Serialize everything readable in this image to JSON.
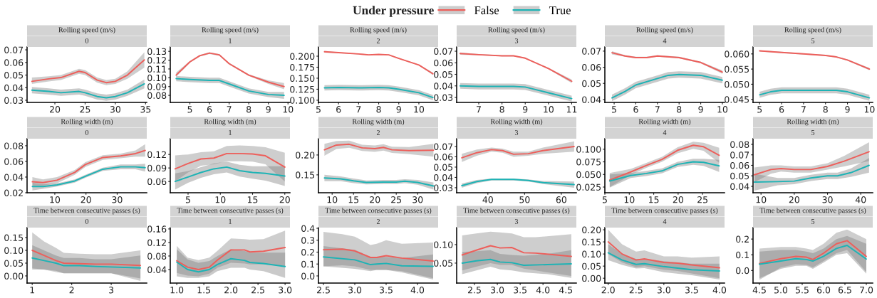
{
  "chart_data": [
    {
      "type": "line",
      "title": "Rolling speed (m/s)",
      "subtitle": "0",
      "legend": "top",
      "legend_title": "Under pressure",
      "xlim": [
        15.4,
        35.2
      ],
      "ylim": [
        0.0283,
        0.0723
      ],
      "xticks": [
        20,
        25,
        30,
        35
      ],
      "yticks": [
        0.03,
        0.04,
        0.05,
        0.06,
        0.07
      ],
      "series": [
        {
          "name": "False",
          "color": "#ed5f5b",
          "x": [
            16.2,
            19,
            21,
            24,
            25,
            27,
            28.5,
            30,
            32,
            34.8
          ],
          "values": [
            0.045,
            0.047,
            0.048,
            0.053,
            0.052,
            0.046,
            0.044,
            0.045,
            0.05,
            0.062
          ],
          "lower": [
            0.043,
            0.045,
            0.046,
            0.051,
            0.05,
            0.044,
            0.042,
            0.043,
            0.047,
            0.056
          ],
          "upper": [
            0.048,
            0.049,
            0.05,
            0.055,
            0.054,
            0.048,
            0.046,
            0.047,
            0.053,
            0.068
          ]
        },
        {
          "name": "True",
          "color": "#1db3b5",
          "x": [
            16.2,
            19,
            21,
            24,
            25,
            27,
            28.5,
            30,
            32,
            34.8
          ],
          "values": [
            0.038,
            0.037,
            0.036,
            0.037,
            0.036,
            0.033,
            0.032,
            0.033,
            0.036,
            0.043
          ],
          "lower": [
            0.0355,
            0.0345,
            0.0335,
            0.0345,
            0.0335,
            0.0305,
            0.0295,
            0.0305,
            0.0335,
            0.0395
          ],
          "upper": [
            0.0405,
            0.0395,
            0.0385,
            0.0395,
            0.0385,
            0.0355,
            0.0345,
            0.0355,
            0.0385,
            0.0465
          ]
        }
      ]
    },
    {
      "type": "line",
      "title": "Rolling speed (m/s)",
      "subtitle": "1",
      "xlim": [
        4.0,
        10.1
      ],
      "ylim": [
        0.072,
        0.135
      ],
      "xticks": [
        5,
        6,
        7,
        8,
        9,
        10
      ],
      "yticks": [
        0.08,
        0.09,
        {
          "value": 0.1,
          "label": "0.10"
        },
        0.11,
        0.12,
        0.13
      ],
      "series": [
        {
          "name": "False",
          "color": "#ed5f5b",
          "x": [
            4.3,
            5,
            5.5,
            6,
            6.5,
            7,
            8,
            9,
            9.8
          ],
          "values": [
            0.103,
            0.118,
            0.125,
            0.128,
            0.126,
            0.116,
            0.103,
            0.095,
            0.09
          ],
          "lower": [
            0.101,
            0.117,
            0.124,
            0.127,
            0.125,
            0.115,
            0.102,
            0.093,
            0.087
          ],
          "upper": [
            0.106,
            0.119,
            0.126,
            0.129,
            0.127,
            0.117,
            0.104,
            0.097,
            0.094
          ]
        },
        {
          "name": "True",
          "color": "#1db3b5",
          "x": [
            4.3,
            5,
            6,
            6.5,
            7,
            8,
            9,
            9.8
          ],
          "values": [
            0.099,
            0.098,
            0.097,
            0.097,
            0.093,
            0.085,
            0.081,
            0.08
          ],
          "lower": [
            0.096,
            0.095,
            0.094,
            0.094,
            0.09,
            0.082,
            0.078,
            0.076
          ],
          "upper": [
            0.102,
            0.101,
            0.1,
            0.1,
            0.096,
            0.088,
            0.084,
            0.084
          ]
        }
      ]
    },
    {
      "type": "line",
      "title": "Rolling speed (m/s)",
      "subtitle": "2",
      "xlim": [
        5.0,
        10.96
      ],
      "ylim": [
        0.095,
        0.221
      ],
      "xticks": [
        5,
        6,
        7,
        8,
        9,
        10
      ],
      "yticks": [
        {
          "value": 0.1,
          "label": "0.100"
        },
        0.125,
        {
          "value": 0.15,
          "label": "0.150"
        },
        0.175,
        {
          "value": 0.2,
          "label": "0.200"
        }
      ],
      "series": [
        {
          "name": "False",
          "color": "#ed5f5b",
          "x": [
            5.3,
            6,
            7,
            7.5,
            8,
            8.5,
            9,
            10,
            10.7
          ],
          "values": [
            0.21,
            0.208,
            0.205,
            0.203,
            0.204,
            0.203,
            0.195,
            0.18,
            0.16
          ],
          "lower": [
            0.208,
            0.207,
            0.204,
            0.202,
            0.203,
            0.202,
            0.194,
            0.179,
            0.157
          ],
          "upper": [
            0.212,
            0.209,
            0.206,
            0.204,
            0.205,
            0.204,
            0.196,
            0.181,
            0.163
          ]
        },
        {
          "name": "True",
          "color": "#1db3b5",
          "x": [
            5.3,
            6,
            7,
            8,
            8.5,
            9,
            10,
            10.7
          ],
          "values": [
            0.128,
            0.129,
            0.128,
            0.129,
            0.128,
            0.125,
            0.117,
            0.106
          ],
          "lower": [
            0.122,
            0.123,
            0.122,
            0.123,
            0.122,
            0.119,
            0.111,
            0.1
          ],
          "upper": [
            0.134,
            0.135,
            0.134,
            0.135,
            0.134,
            0.131,
            0.123,
            0.112
          ]
        }
      ]
    },
    {
      "type": "line",
      "title": "Rolling speed (m/s)",
      "subtitle": "3",
      "xlim": [
        6.05,
        11.2
      ],
      "ylim": [
        0.0257,
        0.0737
      ],
      "xticks": [
        7,
        8,
        9,
        10,
        11
      ],
      "yticks": [
        0.03,
        0.04,
        0.05,
        0.06,
        0.07
      ],
      "series": [
        {
          "name": "False",
          "color": "#ed5f5b",
          "x": [
            6.2,
            7,
            8,
            8.5,
            9,
            10,
            11
          ],
          "values": [
            0.068,
            0.067,
            0.066,
            0.066,
            0.064,
            0.055,
            0.044
          ],
          "lower": [
            0.067,
            0.0665,
            0.0655,
            0.0655,
            0.0635,
            0.0545,
            0.0425
          ],
          "upper": [
            0.069,
            0.0675,
            0.0665,
            0.0665,
            0.0645,
            0.0555,
            0.0455
          ]
        },
        {
          "name": "True",
          "color": "#1db3b5",
          "x": [
            6.2,
            7,
            8,
            8.5,
            9,
            10,
            11
          ],
          "values": [
            0.04,
            0.0395,
            0.0395,
            0.0395,
            0.039,
            0.034,
            0.029
          ],
          "lower": [
            0.0375,
            0.037,
            0.037,
            0.037,
            0.0365,
            0.0315,
            0.0265
          ],
          "upper": [
            0.0425,
            0.042,
            0.042,
            0.042,
            0.0415,
            0.0365,
            0.0315
          ]
        }
      ]
    },
    {
      "type": "line",
      "title": "Rolling speed (m/s)",
      "subtitle": "4",
      "xlim": [
        4.57,
        10.1
      ],
      "ylim": [
        0.0382,
        0.0726
      ],
      "xticks": [
        5,
        6,
        7,
        8,
        9,
        10
      ],
      "yticks": [
        0.04,
        0.05,
        0.06,
        0.07
      ],
      "series": [
        {
          "name": "False",
          "color": "#ed5f5b",
          "x": [
            4.9,
            5.5,
            6,
            6.5,
            7,
            8,
            9,
            10
          ],
          "values": [
            0.069,
            0.067,
            0.066,
            0.066,
            0.067,
            0.066,
            0.063,
            0.057
          ],
          "lower": [
            0.068,
            0.0665,
            0.0655,
            0.0655,
            0.0665,
            0.0655,
            0.0625,
            0.056
          ],
          "upper": [
            0.07,
            0.0675,
            0.0665,
            0.0665,
            0.0675,
            0.0665,
            0.0635,
            0.058
          ]
        },
        {
          "name": "True",
          "color": "#1db3b5",
          "x": [
            4.9,
            5.5,
            6,
            7,
            7.5,
            8,
            9,
            10
          ],
          "values": [
            0.041,
            0.045,
            0.049,
            0.053,
            0.055,
            0.0555,
            0.055,
            0.052
          ],
          "lower": [
            0.039,
            0.043,
            0.047,
            0.051,
            0.053,
            0.0535,
            0.053,
            0.05
          ],
          "upper": [
            0.043,
            0.047,
            0.051,
            0.055,
            0.057,
            0.0575,
            0.057,
            0.054
          ]
        }
      ]
    },
    {
      "type": "line",
      "title": "Rolling speed (m/s)",
      "subtitle": "5",
      "xlim": [
        4.7,
        10.15
      ],
      "ylim": [
        0.044,
        0.0623
      ],
      "xticks": [
        5,
        6,
        7,
        8,
        9,
        10
      ],
      "yticks": [
        0.045,
        {
          "value": 0.05,
          "label": "0.050"
        },
        0.055,
        {
          "value": 0.06,
          "label": "0.060"
        }
      ],
      "series": [
        {
          "name": "False",
          "color": "#ed5f5b",
          "x": [
            5,
            6,
            7,
            8,
            8.5,
            9,
            10
          ],
          "values": [
            0.061,
            0.0605,
            0.06,
            0.0595,
            0.059,
            0.058,
            0.055
          ],
          "lower": [
            0.0608,
            0.0603,
            0.0598,
            0.0593,
            0.0588,
            0.0578,
            0.0546
          ],
          "upper": [
            0.0612,
            0.0607,
            0.0602,
            0.0597,
            0.0592,
            0.0582,
            0.0554
          ]
        },
        {
          "name": "True",
          "color": "#1db3b5",
          "x": [
            5,
            5.5,
            6,
            7,
            8,
            8.5,
            9,
            10
          ],
          "values": [
            0.0465,
            0.0475,
            0.048,
            0.048,
            0.048,
            0.048,
            0.0475,
            0.0455
          ],
          "lower": [
            0.0455,
            0.0465,
            0.047,
            0.047,
            0.047,
            0.047,
            0.0465,
            0.0445
          ],
          "upper": [
            0.0475,
            0.0485,
            0.049,
            0.049,
            0.049,
            0.049,
            0.0485,
            0.0465
          ]
        }
      ]
    },
    {
      "type": "line",
      "title": "Rolling width (m)",
      "subtitle": "0",
      "xlim": [
        1.1,
        39.5
      ],
      "ylim": [
        0.02,
        0.089
      ],
      "xticks": [
        10,
        20,
        30
      ],
      "yticks": [
        0.02,
        0.04,
        0.06,
        0.08
      ],
      "series": [
        {
          "name": "False",
          "color": "#ed5f5b",
          "x": [
            2.8,
            6.2,
            10.7,
            16.4,
            19.8,
            25.4,
            31.1,
            35.9,
            39
          ],
          "values": [
            0.034,
            0.033,
            0.036,
            0.046,
            0.056,
            0.065,
            0.067,
            0.07,
            0.074
          ],
          "lower": [
            0.029,
            0.029,
            0.032,
            0.043,
            0.053,
            0.062,
            0.064,
            0.066,
            0.066
          ],
          "upper": [
            0.04,
            0.037,
            0.04,
            0.049,
            0.059,
            0.068,
            0.07,
            0.074,
            0.082
          ]
        },
        {
          "name": "True",
          "color": "#1db3b5",
          "x": [
            2.8,
            6.2,
            10.7,
            16.4,
            19.8,
            25.4,
            31.1,
            35.9,
            39
          ],
          "values": [
            0.028,
            0.028,
            0.03,
            0.035,
            0.041,
            0.05,
            0.053,
            0.053,
            0.052
          ],
          "lower": [
            0.023,
            0.025,
            0.028,
            0.033,
            0.039,
            0.048,
            0.05,
            0.05,
            0.047
          ],
          "upper": [
            0.033,
            0.031,
            0.032,
            0.037,
            0.043,
            0.052,
            0.056,
            0.056,
            0.057
          ]
        }
      ]
    },
    {
      "type": "line",
      "title": "Rolling width (m)",
      "subtitle": "1",
      "xlim": [
        2.24,
        20.8
      ],
      "ylim": [
        0.035,
        0.155
      ],
      "xticks": [
        5,
        10,
        15,
        20
      ],
      "yticks": [
        0.06,
        0.09,
        0.12
      ],
      "series": [
        {
          "name": "False",
          "color": "#ed5f5b",
          "x": [
            3,
            5,
            7,
            9,
            11,
            13,
            15,
            17,
            20
          ],
          "values": [
            0.088,
            0.1,
            0.11,
            0.112,
            0.122,
            0.122,
            0.121,
            0.117,
            0.092
          ],
          "lower": [
            0.06,
            0.08,
            0.095,
            0.098,
            0.105,
            0.105,
            0.104,
            0.098,
            0.06
          ],
          "upper": [
            0.118,
            0.12,
            0.125,
            0.127,
            0.139,
            0.14,
            0.139,
            0.136,
            0.124
          ]
        },
        {
          "name": "True",
          "color": "#1db3b5",
          "x": [
            3,
            5,
            7,
            9,
            11,
            13,
            15,
            17,
            20
          ],
          "values": [
            0.06,
            0.07,
            0.08,
            0.088,
            0.092,
            0.084,
            0.08,
            0.078,
            0.072
          ],
          "lower": [
            0.042,
            0.057,
            0.068,
            0.076,
            0.08,
            0.071,
            0.066,
            0.062,
            0.05
          ],
          "upper": [
            0.078,
            0.083,
            0.092,
            0.1,
            0.104,
            0.097,
            0.094,
            0.094,
            0.094
          ]
        }
      ]
    },
    {
      "type": "line",
      "title": "Rolling width (m)",
      "subtitle": "2",
      "xlim": [
        6.8,
        34.8
      ],
      "ylim": [
        0.105,
        0.241
      ],
      "xticks": [
        10,
        15,
        20,
        25,
        30
      ],
      "yticks": [
        0.15,
        {
          "value": 0.2,
          "label": "0.20"
        }
      ],
      "series": [
        {
          "name": "False",
          "color": "#ed5f5b",
          "x": [
            8.2,
            11,
            14,
            17,
            20,
            22,
            24,
            28,
            33.7
          ],
          "values": [
            0.213,
            0.225,
            0.227,
            0.218,
            0.216,
            0.219,
            0.213,
            0.211,
            0.212
          ],
          "lower": [
            0.198,
            0.215,
            0.218,
            0.21,
            0.208,
            0.211,
            0.205,
            0.202,
            0.196
          ],
          "upper": [
            0.228,
            0.235,
            0.236,
            0.226,
            0.224,
            0.227,
            0.221,
            0.22,
            0.228
          ]
        },
        {
          "name": "True",
          "color": "#1db3b5",
          "x": [
            8.2,
            12,
            15,
            18,
            22,
            25,
            27,
            30,
            33.7
          ],
          "values": [
            0.142,
            0.14,
            0.135,
            0.131,
            0.132,
            0.132,
            0.134,
            0.131,
            0.122
          ],
          "lower": [
            0.134,
            0.134,
            0.129,
            0.126,
            0.127,
            0.127,
            0.129,
            0.125,
            0.113
          ],
          "upper": [
            0.15,
            0.146,
            0.141,
            0.136,
            0.137,
            0.137,
            0.139,
            0.137,
            0.131
          ]
        }
      ]
    },
    {
      "type": "line",
      "title": "Rolling width (m)",
      "subtitle": "3",
      "xlim": [
        31.5,
        64.1
      ],
      "ylim": [
        0.0251,
        0.0776
      ],
      "xticks": [
        40,
        50,
        60
      ],
      "yticks": [
        0.03,
        0.04,
        0.05,
        0.06,
        0.07
      ],
      "series": [
        {
          "name": "False",
          "color": "#ed5f5b",
          "x": [
            32.9,
            37,
            41,
            44,
            47,
            51,
            55,
            63.5
          ],
          "values": [
            0.059,
            0.064,
            0.067,
            0.066,
            0.0625,
            0.063,
            0.066,
            0.07
          ],
          "lower": [
            0.055,
            0.061,
            0.065,
            0.064,
            0.06,
            0.061,
            0.063,
            0.065
          ],
          "upper": [
            0.063,
            0.067,
            0.069,
            0.068,
            0.065,
            0.065,
            0.069,
            0.075
          ]
        },
        {
          "name": "True",
          "color": "#1db3b5",
          "x": [
            32.9,
            37,
            41,
            47,
            51,
            55,
            63.5
          ],
          "values": [
            0.032,
            0.036,
            0.038,
            0.038,
            0.037,
            0.035,
            0.033
          ],
          "lower": [
            0.03,
            0.0345,
            0.037,
            0.037,
            0.036,
            0.0335,
            0.03
          ],
          "upper": [
            0.034,
            0.0375,
            0.039,
            0.039,
            0.038,
            0.0365,
            0.036
          ]
        }
      ]
    },
    {
      "type": "line",
      "title": "Rolling width (m)",
      "subtitle": "4",
      "xlim": [
        5.0,
        29.5
      ],
      "ylim": [
        0.0137,
        0.121
      ],
      "xticks": [
        5,
        10,
        15,
        20,
        25
      ],
      "yticks": [
        0.025,
        {
          "value": 0.05,
          "label": "0.050"
        },
        0.075,
        {
          "value": 0.1,
          "label": "0.100"
        }
      ],
      "series": [
        {
          "name": "False",
          "color": "#ed5f5b",
          "x": [
            6,
            10.3,
            13.5,
            16.7,
            19.9,
            23.1,
            25.2,
            28.4
          ],
          "values": [
            0.039,
            0.055,
            0.068,
            0.08,
            0.098,
            0.108,
            0.105,
            0.088
          ],
          "lower": [
            0.025,
            0.049,
            0.063,
            0.075,
            0.092,
            0.101,
            0.097,
            0.073
          ],
          "upper": [
            0.053,
            0.061,
            0.073,
            0.085,
            0.104,
            0.115,
            0.113,
            0.103
          ]
        },
        {
          "name": "True",
          "color": "#1db3b5",
          "x": [
            6,
            10.3,
            13.5,
            16.7,
            19.9,
            23.1,
            25.2,
            28.4
          ],
          "values": [
            0.037,
            0.048,
            0.052,
            0.057,
            0.07,
            0.075,
            0.074,
            0.067
          ],
          "lower": [
            0.024,
            0.043,
            0.047,
            0.052,
            0.065,
            0.069,
            0.067,
            0.055
          ],
          "upper": [
            0.05,
            0.053,
            0.057,
            0.062,
            0.075,
            0.081,
            0.081,
            0.079
          ]
        }
      ]
    },
    {
      "type": "line",
      "title": "Rolling width (m)",
      "subtitle": "5",
      "xlim": [
        7.6,
        43.6
      ],
      "ylim": [
        0.0339,
        0.0854
      ],
      "xticks": [
        10,
        20,
        30,
        40
      ],
      "yticks": [
        0.04,
        0.05,
        0.06,
        0.07,
        0.08
      ],
      "series": [
        {
          "name": "False",
          "color": "#ed5f5b",
          "x": [
            8,
            13,
            16,
            20,
            25,
            30,
            35,
            42.5
          ],
          "values": [
            0.051,
            0.056,
            0.057,
            0.056,
            0.056,
            0.059,
            0.064,
            0.073
          ],
          "lower": [
            0.044,
            0.052,
            0.054,
            0.053,
            0.053,
            0.056,
            0.059,
            0.064
          ],
          "upper": [
            0.058,
            0.06,
            0.06,
            0.059,
            0.059,
            0.062,
            0.069,
            0.082
          ]
        },
        {
          "name": "True",
          "color": "#1db3b5",
          "x": [
            8,
            15,
            20,
            25,
            30,
            33,
            37,
            42.5
          ],
          "values": [
            0.044,
            0.0445,
            0.045,
            0.048,
            0.05,
            0.05,
            0.053,
            0.06
          ],
          "lower": [
            0.036,
            0.041,
            0.042,
            0.045,
            0.047,
            0.047,
            0.049,
            0.053
          ],
          "upper": [
            0.052,
            0.048,
            0.048,
            0.051,
            0.053,
            0.053,
            0.057,
            0.067
          ]
        }
      ]
    },
    {
      "type": "line",
      "title": "Time between consecutive passes (s)",
      "subtitle": "0",
      "xlim": [
        0.87,
        3.9
      ],
      "ylim": [
        -0.028,
        0.189
      ],
      "xticks": [
        1,
        2,
        3
      ],
      "yticks": [
        {
          "value": 0.0,
          "label": "0.00"
        },
        0.05,
        {
          "value": 0.1,
          "label": "0.10"
        },
        0.15
      ],
      "series": [
        {
          "name": "False",
          "color": "#ed5f5b",
          "x": [
            1,
            1.3,
            1.6,
            1.8,
            2.2,
            2.6,
            3,
            3.74
          ],
          "values": [
            0.1,
            0.08,
            0.06,
            0.05,
            0.048,
            0.046,
            0.046,
            0.041
          ],
          "lower": [
            0.03,
            0.025,
            0.015,
            0.01,
            0.01,
            0.01,
            0.01,
            -0.02
          ],
          "upper": [
            0.17,
            0.135,
            0.11,
            0.09,
            0.087,
            0.085,
            0.085,
            0.1
          ]
        },
        {
          "name": "True",
          "color": "#1db3b5",
          "x": [
            1,
            1.3,
            1.6,
            1.8,
            2.2,
            2.6,
            3,
            3.74
          ],
          "values": [
            0.07,
            0.06,
            0.05,
            0.04,
            0.04,
            0.037,
            0.035,
            0.031
          ],
          "lower": [
            0.025,
            0.025,
            0.02,
            0.01,
            0.01,
            0.01,
            0.01,
            -0.01
          ],
          "upper": [
            0.12,
            0.1,
            0.08,
            0.07,
            0.07,
            0.065,
            0.065,
            0.08
          ]
        }
      ]
    },
    {
      "type": "line",
      "title": "Time between consecutive passes (s)",
      "subtitle": "1",
      "xlim": [
        0.88,
        3.09
      ],
      "ylim": [
        0.0,
        0.164
      ],
      "xticks": [
        {
          "value": 1,
          "label": "1.0"
        },
        1.5,
        {
          "value": 2,
          "label": "2.0"
        },
        2.5,
        {
          "value": 3,
          "label": "3.0"
        }
      ],
      "yticks": [
        0.04,
        0.08,
        0.12,
        0.16
      ],
      "series": [
        {
          "name": "False",
          "color": "#ed5f5b",
          "x": [
            1,
            1.2,
            1.4,
            1.6,
            1.75,
            2,
            2.25,
            2.35,
            2.6,
            3
          ],
          "values": [
            0.066,
            0.047,
            0.04,
            0.047,
            0.068,
            0.098,
            0.098,
            0.092,
            0.094,
            0.105
          ],
          "lower": [
            0.03,
            0.022,
            0.02,
            0.028,
            0.045,
            0.06,
            0.058,
            0.055,
            0.055,
            0.05
          ],
          "upper": [
            0.11,
            0.075,
            0.068,
            0.075,
            0.095,
            0.132,
            0.13,
            0.128,
            0.13,
            0.155
          ]
        },
        {
          "name": "True",
          "color": "#1db3b5",
          "x": [
            1,
            1.2,
            1.4,
            1.6,
            1.75,
            2,
            2.25,
            2.35,
            2.6,
            3
          ],
          "values": [
            0.062,
            0.04,
            0.033,
            0.04,
            0.055,
            0.072,
            0.067,
            0.061,
            0.058,
            0.049
          ],
          "lower": [
            0.02,
            0.015,
            0.015,
            0.02,
            0.035,
            0.045,
            0.045,
            0.04,
            0.035,
            0.015
          ],
          "upper": [
            0.1,
            0.07,
            0.06,
            0.065,
            0.08,
            0.1,
            0.095,
            0.09,
            0.09,
            0.09
          ]
        }
      ]
    },
    {
      "type": "line",
      "title": "Time between consecutive passes (s)",
      "subtitle": "2",
      "xlim": [
        2.42,
        4.33
      ],
      "ylim": [
        -0.06,
        0.406
      ],
      "xticks": [
        2.5,
        {
          "value": 3,
          "label": "3.0"
        },
        3.5,
        {
          "value": 4,
          "label": "4.0"
        }
      ],
      "yticks": [
        {
          "value": 0,
          "label": "0.0"
        },
        0.1,
        0.2,
        0.3,
        0.4
      ],
      "series": [
        {
          "name": "False",
          "color": "#ed5f5b",
          "x": [
            2.5,
            2.8,
            3,
            3.25,
            3.35,
            3.5,
            3.75,
            4.25
          ],
          "values": [
            0.22,
            0.225,
            0.21,
            0.155,
            0.155,
            0.17,
            0.15,
            0.125
          ],
          "lower": [
            0.08,
            0.09,
            0.08,
            0.05,
            0.05,
            0.05,
            0.04,
            -0.02
          ],
          "upper": [
            0.37,
            0.35,
            0.33,
            0.26,
            0.27,
            0.3,
            0.27,
            0.28
          ]
        },
        {
          "name": "True",
          "color": "#1db3b5",
          "x": [
            2.5,
            3,
            3.25,
            3.35,
            3.5,
            3.75,
            4.25
          ],
          "values": [
            0.16,
            0.135,
            0.095,
            0.1,
            0.105,
            0.085,
            0.08
          ],
          "lower": [
            0.08,
            0.06,
            0.04,
            0.05,
            0.05,
            0.03,
            -0.03
          ],
          "upper": [
            0.25,
            0.22,
            0.16,
            0.16,
            0.16,
            0.15,
            0.18
          ]
        }
      ]
    },
    {
      "type": "line",
      "title": "Time between consecutive passes (s)",
      "subtitle": "3",
      "xlim": [
        2.11,
        4.73
      ],
      "ylim": [
        -0.004,
        0.146
      ],
      "xticks": [
        2.5,
        {
          "value": 3,
          "label": "3.0"
        },
        3.5,
        {
          "value": 4,
          "label": "4.0"
        },
        4.5
      ],
      "yticks": [
        0.05,
        {
          "value": 0.1,
          "label": "0.10"
        }
      ],
      "series": [
        {
          "name": "False",
          "color": "#ed5f5b",
          "x": [
            2.23,
            2.54,
            2.85,
            3.06,
            3.32,
            3.58,
            3.84,
            4.62
          ],
          "values": [
            0.072,
            0.085,
            0.097,
            0.091,
            0.092,
            0.078,
            0.077,
            0.068
          ],
          "lower": [
            0.03,
            0.04,
            0.05,
            0.045,
            0.045,
            0.035,
            0.03,
            0.015
          ],
          "upper": [
            0.125,
            0.13,
            0.135,
            0.133,
            0.13,
            0.12,
            0.12,
            0.128
          ]
        },
        {
          "name": "True",
          "color": "#1db3b5",
          "x": [
            2.23,
            2.54,
            2.85,
            3.06,
            3.32,
            3.58,
            4.1,
            4.62
          ],
          "values": [
            0.05,
            0.056,
            0.06,
            0.053,
            0.051,
            0.044,
            0.046,
            0.048
          ],
          "lower": [
            0.02,
            0.03,
            0.04,
            0.033,
            0.03,
            0.025,
            0.02,
            0.01
          ],
          "upper": [
            0.08,
            0.082,
            0.085,
            0.075,
            0.072,
            0.07,
            0.075,
            0.085
          ]
        }
      ]
    },
    {
      "type": "line",
      "title": "Time between consecutive passes (s)",
      "subtitle": "4",
      "xlim": [
        1.94,
        4.09
      ],
      "ylim": [
        -0.02,
        0.209
      ],
      "xticks": [
        {
          "value": 2,
          "label": "2.0"
        },
        2.5,
        {
          "value": 3,
          "label": "3.0"
        },
        3.5,
        {
          "value": 4,
          "label": "4.0"
        }
      ],
      "yticks": [
        {
          "value": 0.0,
          "label": "0.00"
        },
        0.05,
        {
          "value": 0.1,
          "label": "0.10"
        },
        0.15,
        {
          "value": 0.2,
          "label": "0.20"
        }
      ],
      "series": [
        {
          "name": "False",
          "color": "#ed5f5b",
          "x": [
            2,
            2.25,
            2.5,
            2.65,
            3,
            3.25,
            3.5,
            4
          ],
          "values": [
            0.15,
            0.1,
            0.075,
            0.08,
            0.065,
            0.062,
            0.055,
            0.043
          ],
          "lower": [
            0.1,
            0.065,
            0.045,
            0.05,
            0.035,
            0.03,
            0.02,
            0.0
          ],
          "upper": [
            0.2,
            0.14,
            0.11,
            0.115,
            0.09,
            0.09,
            0.085,
            0.09
          ]
        },
        {
          "name": "True",
          "color": "#1db3b5",
          "x": [
            2,
            2.25,
            2.5,
            2.65,
            3,
            3.5,
            4
          ],
          "values": [
            0.105,
            0.075,
            0.057,
            0.06,
            0.048,
            0.035,
            0.03
          ],
          "lower": [
            0.075,
            0.055,
            0.04,
            0.042,
            0.025,
            0.012,
            -0.005
          ],
          "upper": [
            0.14,
            0.1,
            0.08,
            0.08,
            0.07,
            0.06,
            0.06
          ]
        }
      ]
    },
    {
      "type": "line",
      "title": "Time between consecutive passes (s)",
      "subtitle": "5",
      "xlim": [
        4.35,
        7.15
      ],
      "ylim": [
        -0.08,
        0.273
      ],
      "xticks": [
        4.5,
        {
          "value": 5,
          "label": "5.0"
        },
        5.5,
        {
          "value": 6,
          "label": "6.0"
        },
        6.5,
        {
          "value": 7,
          "label": "7.0"
        }
      ],
      "yticks": [
        {
          "value": 0,
          "label": "0.0"
        },
        0.1,
        0.2
      ],
      "series": [
        {
          "name": "False",
          "color": "#ed5f5b",
          "x": [
            4.5,
            5,
            5.35,
            5.6,
            5.75,
            6,
            6.3,
            6.55,
            7
          ],
          "values": [
            0.045,
            0.075,
            0.09,
            0.085,
            0.07,
            0.11,
            0.17,
            0.19,
            0.09
          ],
          "lower": [
            -0.06,
            0.02,
            0.04,
            0.035,
            0.02,
            0.06,
            0.11,
            0.13,
            -0.01
          ],
          "upper": [
            0.14,
            0.15,
            0.15,
            0.14,
            0.13,
            0.17,
            0.24,
            0.26,
            0.2
          ]
        },
        {
          "name": "True",
          "color": "#1db3b5",
          "x": [
            4.5,
            5,
            5.35,
            5.6,
            5.75,
            6,
            6.3,
            6.55,
            7
          ],
          "values": [
            0.04,
            0.06,
            0.075,
            0.07,
            0.06,
            0.09,
            0.14,
            0.16,
            0.073
          ],
          "lower": [
            -0.05,
            0.01,
            0.03,
            0.03,
            0.01,
            0.05,
            0.1,
            0.11,
            -0.02
          ],
          "upper": [
            0.12,
            0.13,
            0.13,
            0.12,
            0.11,
            0.14,
            0.2,
            0.22,
            0.17
          ]
        }
      ]
    }
  ]
}
